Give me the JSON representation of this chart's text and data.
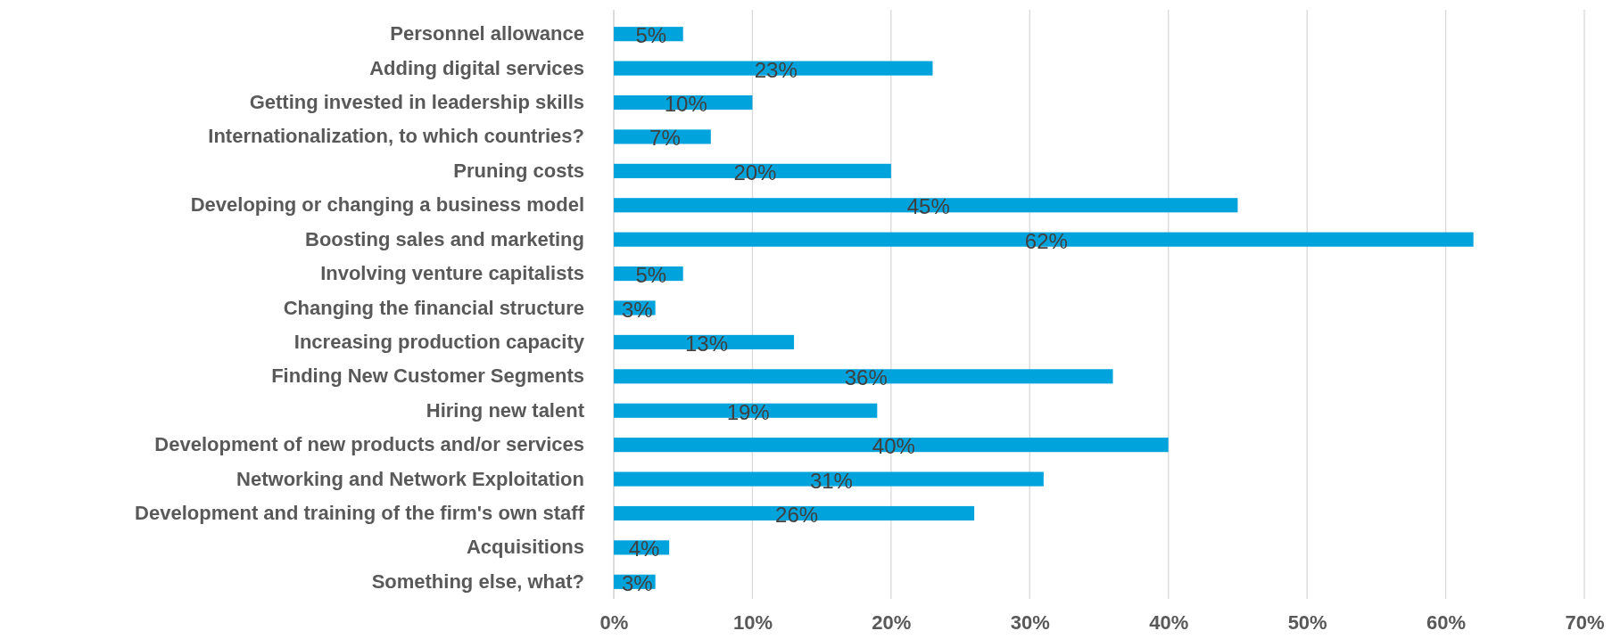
{
  "chart_data": {
    "type": "bar",
    "orientation": "horizontal",
    "categories": [
      "Personnel allowance",
      "Adding digital services",
      "Getting invested in leadership skills",
      "Internationalization, to which countries?",
      "Pruning costs",
      "Developing or changing a business model",
      "Boosting sales and marketing",
      "Involving venture capitalists",
      "Changing the financial structure",
      "Increasing production capacity",
      "Finding New Customer Segments",
      "Hiring new talent",
      "Development of new products and/or services",
      "Networking and Network Exploitation",
      "Development and training of the firm's own staff",
      "Acquisitions",
      "Something else, what?"
    ],
    "values": [
      5,
      23,
      10,
      7,
      20,
      45,
      62,
      5,
      3,
      13,
      36,
      19,
      40,
      31,
      26,
      4,
      3
    ],
    "color": "#00a3dc",
    "xlim": [
      0,
      70
    ],
    "xticks": [
      {
        "value": 0,
        "label": "0%"
      },
      {
        "value": 10,
        "label": "10%"
      },
      {
        "value": 20,
        "label": "20%"
      },
      {
        "value": 30,
        "label": "30%"
      },
      {
        "value": 40,
        "label": "40%"
      },
      {
        "value": 50,
        "label": "50%"
      },
      {
        "value": 60,
        "label": "60%"
      },
      {
        "value": 70,
        "label": "70%"
      }
    ],
    "value_labels": [
      "5%",
      "23%",
      "10%",
      "7%",
      "20%",
      "45%",
      "62%",
      "5%",
      "3%",
      "13%",
      "36%",
      "19%",
      "40%",
      "31%",
      "26%",
      "4%",
      "3%"
    ],
    "grid": "x"
  }
}
